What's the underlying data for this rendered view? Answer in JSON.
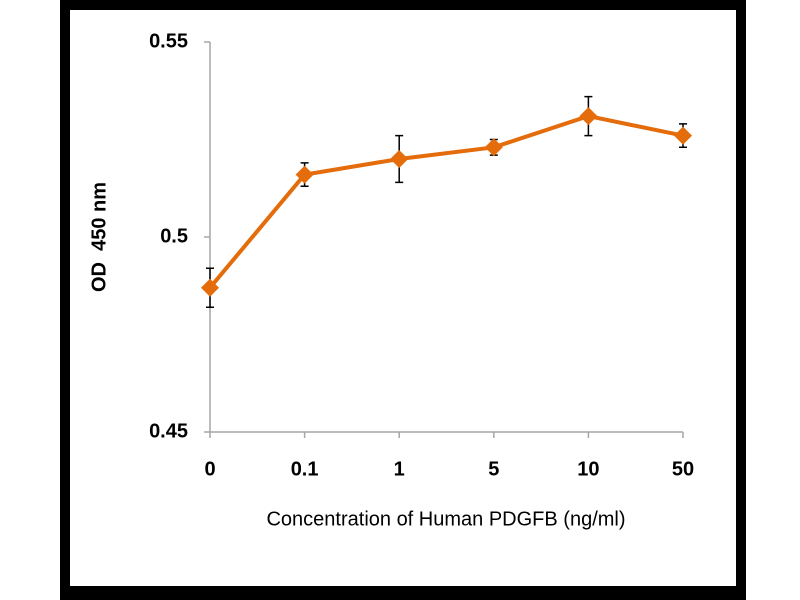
{
  "chart_data": {
    "type": "line",
    "categories": [
      "0",
      "0.1",
      "1",
      "5",
      "10",
      "50"
    ],
    "series": [
      {
        "color": "#e46c0a",
        "values": [
          0.487,
          0.516,
          0.52,
          0.523,
          0.531,
          0.526
        ],
        "errors": [
          0.005,
          0.003,
          0.006,
          0.002,
          0.005,
          0.003
        ]
      }
    ],
    "ylim": [
      0.45,
      0.55
    ],
    "yticks": [
      0.45,
      0.5,
      0.55
    ],
    "xlabel": "Concentration of Human PDGFB (ng/ml)",
    "ylabel": "OD  450 nm",
    "grid": false
  }
}
